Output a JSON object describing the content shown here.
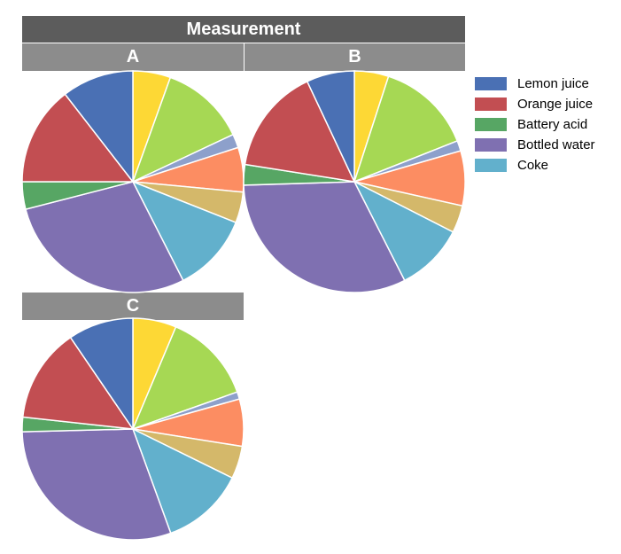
{
  "chart_data": {
    "type": "pie",
    "title": "Measurement",
    "legend_position": "right",
    "slice_colors": [
      "#fdd835",
      "#a6d854",
      "#8da0cb",
      "#fc8d62",
      "#d4b86a",
      "#62b0cc",
      "#7f70b1",
      "#57a664",
      "#c24e52",
      "#4a70b4"
    ],
    "legend": [
      {
        "label": "Lemon juice",
        "color": "#4a70b4"
      },
      {
        "label": "Orange juice",
        "color": "#c24e52"
      },
      {
        "label": "Battery acid",
        "color": "#57a664"
      },
      {
        "label": "Bottled water",
        "color": "#7f70b1"
      },
      {
        "label": "Coke",
        "color": "#62b0cc"
      }
    ],
    "panels": [
      {
        "label": "A",
        "values": [
          5.5,
          12.5,
          2.0,
          6.5,
          4.5,
          11.5,
          28.5,
          4.0,
          14.5,
          10.5
        ]
      },
      {
        "label": "B",
        "values": [
          5.0,
          14.0,
          1.5,
          8.0,
          4.0,
          10.0,
          32.0,
          3.0,
          15.5,
          7.0
        ]
      },
      {
        "label": "C",
        "values": [
          6.0,
          12.5,
          1.0,
          6.5,
          4.5,
          11.5,
          28.5,
          2.0,
          13.0,
          9.0
        ]
      }
    ]
  }
}
